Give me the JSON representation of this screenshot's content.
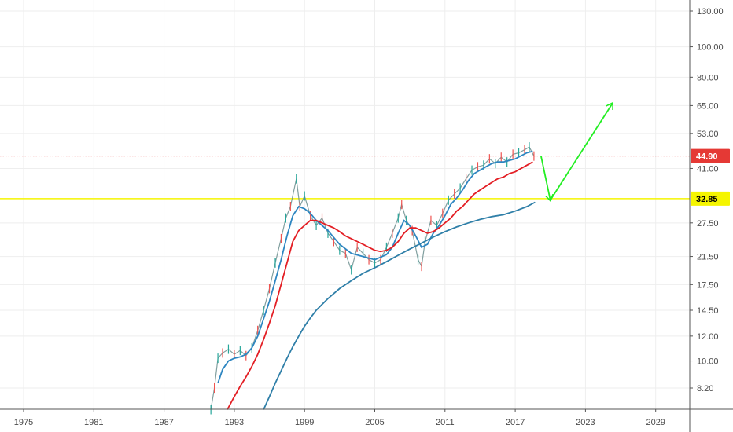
{
  "chart_data": {
    "type": "line",
    "title": "",
    "xlabel": "",
    "ylabel": "",
    "y_scale": "log",
    "xlim": [
      1972,
      2033
    ],
    "ylim": [
      7.0,
      140
    ],
    "x_ticks": [
      "1975",
      "1981",
      "1987",
      "1993",
      "1999",
      "2005",
      "2011",
      "2017",
      "2023",
      "2029"
    ],
    "y_ticks": [
      "130.00",
      "100.00",
      "80.00",
      "65.00",
      "53.00",
      "41.00",
      "27.50",
      "21.50",
      "17.50",
      "14.50",
      "12.00",
      "10.00",
      "8.20"
    ],
    "grid": true,
    "series": [
      {
        "type": "price",
        "color": "#6b8e8e",
        "points": [
          [
            1991.0,
            7.0
          ],
          [
            1991.3,
            8.2
          ],
          [
            1991.6,
            10.2
          ],
          [
            1992.0,
            10.6
          ],
          [
            1992.5,
            10.9
          ],
          [
            1993.0,
            10.5
          ],
          [
            1993.5,
            10.8
          ],
          [
            1994.0,
            10.4
          ],
          [
            1994.5,
            11.0
          ],
          [
            1995.0,
            12.5
          ],
          [
            1995.5,
            14.5
          ],
          [
            1996.0,
            17.0
          ],
          [
            1996.5,
            20.5
          ],
          [
            1997.0,
            24.5
          ],
          [
            1997.4,
            28.5
          ],
          [
            1997.8,
            31.0
          ],
          [
            1998.3,
            38.0
          ],
          [
            1998.6,
            31.0
          ],
          [
            1999.0,
            33.5
          ],
          [
            1999.5,
            29.0
          ],
          [
            2000.0,
            27.0
          ],
          [
            2000.5,
            28.5
          ],
          [
            2001.0,
            25.5
          ],
          [
            2001.5,
            24.0
          ],
          [
            2002.0,
            22.5
          ],
          [
            2002.5,
            22.0
          ],
          [
            2003.0,
            19.5
          ],
          [
            2003.5,
            23.0
          ],
          [
            2004.0,
            22.0
          ],
          [
            2004.5,
            21.0
          ],
          [
            2005.0,
            20.5
          ],
          [
            2005.5,
            21.0
          ],
          [
            2006.0,
            23.0
          ],
          [
            2006.5,
            25.5
          ],
          [
            2007.0,
            28.5
          ],
          [
            2007.3,
            31.5
          ],
          [
            2007.7,
            28.0
          ],
          [
            2008.2,
            26.0
          ],
          [
            2008.7,
            21.0
          ],
          [
            2009.0,
            20.0
          ],
          [
            2009.3,
            24.0
          ],
          [
            2009.8,
            28.0
          ],
          [
            2010.3,
            27.0
          ],
          [
            2010.8,
            29.5
          ],
          [
            2011.3,
            32.5
          ],
          [
            2011.8,
            34.0
          ],
          [
            2012.3,
            35.5
          ],
          [
            2012.8,
            38.0
          ],
          [
            2013.3,
            40.5
          ],
          [
            2013.8,
            41.5
          ],
          [
            2014.3,
            42.0
          ],
          [
            2014.8,
            44.0
          ],
          [
            2015.3,
            42.5
          ],
          [
            2015.8,
            44.5
          ],
          [
            2016.3,
            43.0
          ],
          [
            2016.8,
            45.5
          ],
          [
            2017.3,
            46.0
          ],
          [
            2017.8,
            47.0
          ],
          [
            2018.2,
            48.0
          ],
          [
            2018.6,
            44.9
          ]
        ]
      },
      {
        "type": "moving-average",
        "color": "#2e86c1",
        "points": [
          [
            1991.6,
            8.5
          ],
          [
            1992.0,
            9.4
          ],
          [
            1992.5,
            10.0
          ],
          [
            1993.0,
            10.2
          ],
          [
            1993.5,
            10.3
          ],
          [
            1994.0,
            10.5
          ],
          [
            1994.5,
            11.0
          ],
          [
            1995.0,
            12.0
          ],
          [
            1995.5,
            13.6
          ],
          [
            1996.0,
            15.5
          ],
          [
            1996.5,
            18.0
          ],
          [
            1997.0,
            21.0
          ],
          [
            1997.5,
            25.0
          ],
          [
            1998.0,
            29.0
          ],
          [
            1998.5,
            31.0
          ],
          [
            1999.0,
            30.5
          ],
          [
            1999.5,
            29.5
          ],
          [
            2000.0,
            28.0
          ],
          [
            2001.0,
            26.0
          ],
          [
            2002.0,
            23.5
          ],
          [
            2003.0,
            22.0
          ],
          [
            2004.0,
            21.5
          ],
          [
            2005.0,
            21.0
          ],
          [
            2006.0,
            21.8
          ],
          [
            2006.5,
            23.0
          ],
          [
            2007.0,
            25.5
          ],
          [
            2007.5,
            28.0
          ],
          [
            2008.0,
            27.0
          ],
          [
            2008.5,
            25.0
          ],
          [
            2009.0,
            23.0
          ],
          [
            2009.5,
            23.5
          ],
          [
            2010.0,
            25.5
          ],
          [
            2010.5,
            27.0
          ],
          [
            2011.0,
            29.0
          ],
          [
            2011.5,
            31.5
          ],
          [
            2012.0,
            33.0
          ],
          [
            2012.5,
            35.0
          ],
          [
            2013.0,
            37.5
          ],
          [
            2013.5,
            39.5
          ],
          [
            2014.0,
            40.5
          ],
          [
            2014.5,
            41.5
          ],
          [
            2015.0,
            42.5
          ],
          [
            2015.5,
            43.0
          ],
          [
            2016.0,
            43.0
          ],
          [
            2016.5,
            43.5
          ],
          [
            2017.0,
            44.0
          ],
          [
            2017.5,
            45.0
          ],
          [
            2018.0,
            46.0
          ],
          [
            2018.5,
            46.5
          ]
        ]
      },
      {
        "type": "moving-average",
        "color": "#e31e24",
        "points": [
          [
            1992.4,
            7.0
          ],
          [
            1993.0,
            7.7
          ],
          [
            1993.5,
            8.3
          ],
          [
            1994.0,
            8.9
          ],
          [
            1994.5,
            9.6
          ],
          [
            1995.0,
            10.5
          ],
          [
            1995.5,
            11.7
          ],
          [
            1996.0,
            13.2
          ],
          [
            1996.5,
            15.0
          ],
          [
            1997.0,
            17.5
          ],
          [
            1997.5,
            20.5
          ],
          [
            1998.0,
            24.0
          ],
          [
            1998.5,
            26.0
          ],
          [
            1999.0,
            27.0
          ],
          [
            1999.5,
            28.0
          ],
          [
            2000.0,
            28.0
          ],
          [
            2000.5,
            27.5
          ],
          [
            2001.0,
            27.0
          ],
          [
            2001.5,
            26.5
          ],
          [
            2002.0,
            25.8
          ],
          [
            2002.5,
            25.0
          ],
          [
            2003.0,
            24.5
          ],
          [
            2003.5,
            24.0
          ],
          [
            2004.0,
            23.5
          ],
          [
            2004.5,
            23.0
          ],
          [
            2005.0,
            22.5
          ],
          [
            2005.5,
            22.3
          ],
          [
            2006.0,
            22.5
          ],
          [
            2006.5,
            23.0
          ],
          [
            2007.0,
            24.0
          ],
          [
            2007.5,
            25.5
          ],
          [
            2008.0,
            26.5
          ],
          [
            2008.5,
            26.5
          ],
          [
            2009.0,
            26.0
          ],
          [
            2009.5,
            25.5
          ],
          [
            2010.0,
            25.8
          ],
          [
            2010.5,
            26.5
          ],
          [
            2011.0,
            27.5
          ],
          [
            2011.5,
            28.5
          ],
          [
            2012.0,
            30.0
          ],
          [
            2012.5,
            31.0
          ],
          [
            2013.0,
            32.5
          ],
          [
            2013.5,
            34.0
          ],
          [
            2014.0,
            35.0
          ],
          [
            2014.5,
            36.0
          ],
          [
            2015.0,
            37.0
          ],
          [
            2015.5,
            38.0
          ],
          [
            2016.0,
            38.5
          ],
          [
            2016.5,
            39.5
          ],
          [
            2017.0,
            40.0
          ],
          [
            2017.5,
            41.0
          ],
          [
            2018.0,
            42.0
          ],
          [
            2018.5,
            43.0
          ]
        ]
      },
      {
        "type": "moving-average",
        "color": "#2f7fa8",
        "points": [
          [
            1995.5,
            7.0
          ],
          [
            1996.0,
            7.7
          ],
          [
            1996.5,
            8.5
          ],
          [
            1997.0,
            9.3
          ],
          [
            1997.5,
            10.2
          ],
          [
            1998.0,
            11.1
          ],
          [
            1998.5,
            12.0
          ],
          [
            1999.0,
            12.9
          ],
          [
            1999.5,
            13.7
          ],
          [
            2000.0,
            14.5
          ],
          [
            2001.0,
            15.8
          ],
          [
            2002.0,
            17.0
          ],
          [
            2003.0,
            18.0
          ],
          [
            2004.0,
            19.0
          ],
          [
            2005.0,
            19.8
          ],
          [
            2006.0,
            20.7
          ],
          [
            2007.0,
            21.7
          ],
          [
            2008.0,
            22.7
          ],
          [
            2009.0,
            23.7
          ],
          [
            2010.0,
            24.8
          ],
          [
            2011.0,
            25.8
          ],
          [
            2012.0,
            26.7
          ],
          [
            2013.0,
            27.5
          ],
          [
            2014.0,
            28.2
          ],
          [
            2015.0,
            28.8
          ],
          [
            2016.0,
            29.2
          ],
          [
            2017.0,
            30.0
          ],
          [
            2018.0,
            31.0
          ],
          [
            2018.7,
            32.0
          ]
        ]
      }
    ],
    "horizontal_lines": [
      {
        "value": 44.9,
        "label": "44.90",
        "color": "#e53935",
        "style": "dotted"
      },
      {
        "value": 32.85,
        "label": "32.85",
        "color": "#f5f500",
        "style": "solid"
      }
    ],
    "annotations": [
      {
        "type": "arrow",
        "color": "#22ee22",
        "from": [
          2019.2,
          45.0
        ],
        "to": [
          2020.0,
          32.5
        ]
      },
      {
        "type": "arrow",
        "color": "#22ee22",
        "from": [
          2020.0,
          32.5
        ],
        "to": [
          2025.3,
          66.0
        ]
      }
    ]
  }
}
